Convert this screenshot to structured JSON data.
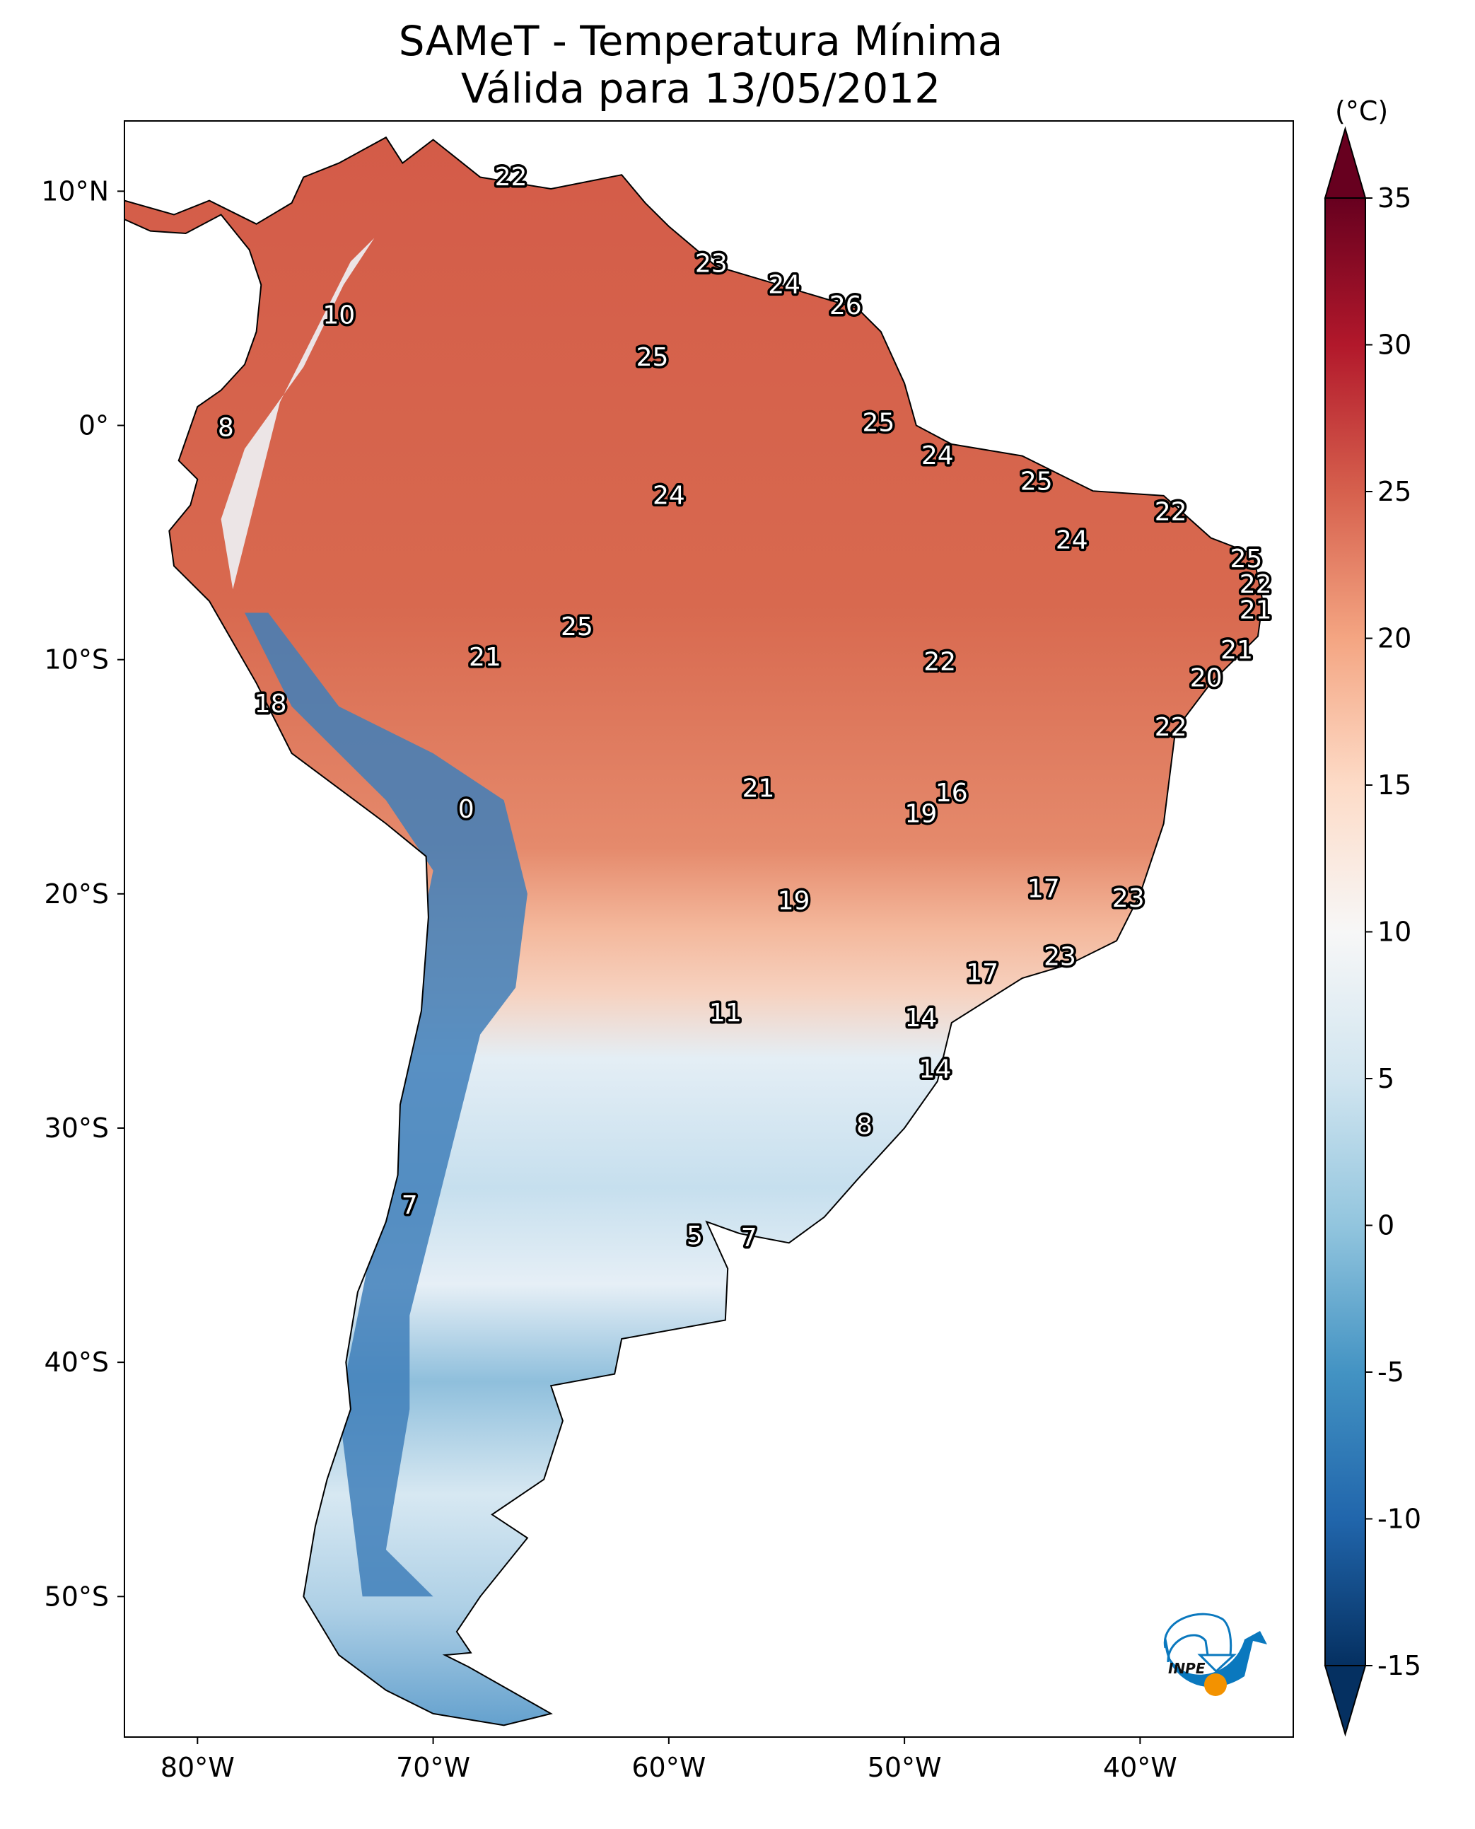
{
  "title": {
    "line1": "SAMeT - Temperatura Mínima",
    "line2": "Válida para 13/05/2012"
  },
  "map": {
    "extent_lon": [
      -83.1,
      -33.5
    ],
    "extent_lat": [
      -56,
      13
    ],
    "x_ticks": [
      {
        "lon": -80,
        "label": "80°W"
      },
      {
        "lon": -70,
        "label": "70°W"
      },
      {
        "lon": -60,
        "label": "60°W"
      },
      {
        "lon": -50,
        "label": "50°W"
      },
      {
        "lon": -40,
        "label": "40°W"
      }
    ],
    "y_ticks": [
      {
        "lat": 10,
        "label": "10°N"
      },
      {
        "lat": 0,
        "label": "0°"
      },
      {
        "lat": -10,
        "label": "10°S"
      },
      {
        "lat": -20,
        "label": "20°S"
      },
      {
        "lat": -30,
        "label": "30°S"
      },
      {
        "lat": -40,
        "label": "40°S"
      },
      {
        "lat": -50,
        "label": "50°S"
      }
    ],
    "stations": [
      {
        "lon": -66.7,
        "lat": 10.6,
        "value": "22"
      },
      {
        "lon": -74.0,
        "lat": 4.7,
        "value": "10"
      },
      {
        "lon": -58.2,
        "lat": 6.9,
        "value": "23"
      },
      {
        "lon": -55.1,
        "lat": 6.0,
        "value": "24"
      },
      {
        "lon": -52.5,
        "lat": 5.1,
        "value": "26"
      },
      {
        "lon": -60.7,
        "lat": 2.9,
        "value": "25"
      },
      {
        "lon": -78.8,
        "lat": -0.1,
        "value": "8"
      },
      {
        "lon": -51.1,
        "lat": 0.1,
        "value": "25"
      },
      {
        "lon": -48.6,
        "lat": -1.3,
        "value": "24"
      },
      {
        "lon": -44.4,
        "lat": -2.4,
        "value": "25"
      },
      {
        "lon": -60.0,
        "lat": -3.0,
        "value": "24"
      },
      {
        "lon": -38.7,
        "lat": -3.7,
        "value": "22"
      },
      {
        "lon": -42.9,
        "lat": -4.9,
        "value": "24"
      },
      {
        "lon": -35.5,
        "lat": -5.7,
        "value": "25"
      },
      {
        "lon": -35.1,
        "lat": -6.8,
        "value": "22"
      },
      {
        "lon": -35.1,
        "lat": -7.9,
        "value": "21"
      },
      {
        "lon": -63.9,
        "lat": -8.6,
        "value": "25"
      },
      {
        "lon": -35.9,
        "lat": -9.6,
        "value": "21"
      },
      {
        "lon": -67.8,
        "lat": -9.9,
        "value": "21"
      },
      {
        "lon": -48.5,
        "lat": -10.1,
        "value": "22"
      },
      {
        "lon": -37.2,
        "lat": -10.8,
        "value": "20"
      },
      {
        "lon": -76.9,
        "lat": -11.9,
        "value": "18"
      },
      {
        "lon": -38.7,
        "lat": -12.9,
        "value": "22"
      },
      {
        "lon": -56.2,
        "lat": -15.5,
        "value": "21"
      },
      {
        "lon": -48.0,
        "lat": -15.7,
        "value": "16"
      },
      {
        "lon": -68.6,
        "lat": -16.4,
        "value": "0"
      },
      {
        "lon": -49.3,
        "lat": -16.6,
        "value": "19"
      },
      {
        "lon": -44.1,
        "lat": -19.8,
        "value": "17"
      },
      {
        "lon": -40.5,
        "lat": -20.2,
        "value": "23"
      },
      {
        "lon": -54.7,
        "lat": -20.3,
        "value": "19"
      },
      {
        "lon": -43.4,
        "lat": -22.7,
        "value": "23"
      },
      {
        "lon": -46.7,
        "lat": -23.4,
        "value": "17"
      },
      {
        "lon": -57.6,
        "lat": -25.1,
        "value": "11"
      },
      {
        "lon": -49.3,
        "lat": -25.3,
        "value": "14"
      },
      {
        "lon": -48.7,
        "lat": -27.5,
        "value": "14"
      },
      {
        "lon": -51.7,
        "lat": -29.9,
        "value": "8"
      },
      {
        "lon": -71.0,
        "lat": -33.3,
        "value": "7"
      },
      {
        "lon": -58.9,
        "lat": -34.6,
        "value": "5"
      },
      {
        "lon": -56.6,
        "lat": -34.7,
        "value": "7"
      }
    ]
  },
  "colorbar": {
    "unit": "(°C)",
    "min": -15,
    "max": 35,
    "ticks": [
      "-15",
      "-10",
      "-5",
      "0",
      "5",
      "10",
      "15",
      "20",
      "25",
      "30",
      "35"
    ],
    "colormap": "RdBu_r",
    "colors": [
      "#053061",
      "#2166ac",
      "#4393c3",
      "#92c5de",
      "#d1e5f0",
      "#f7f7f7",
      "#fddbc7",
      "#f4a582",
      "#d6604d",
      "#b2182b",
      "#67001f"
    ],
    "extend": "both"
  },
  "logo": {
    "text": "INPE",
    "blue": "#0a78be",
    "orange": "#f39200"
  }
}
